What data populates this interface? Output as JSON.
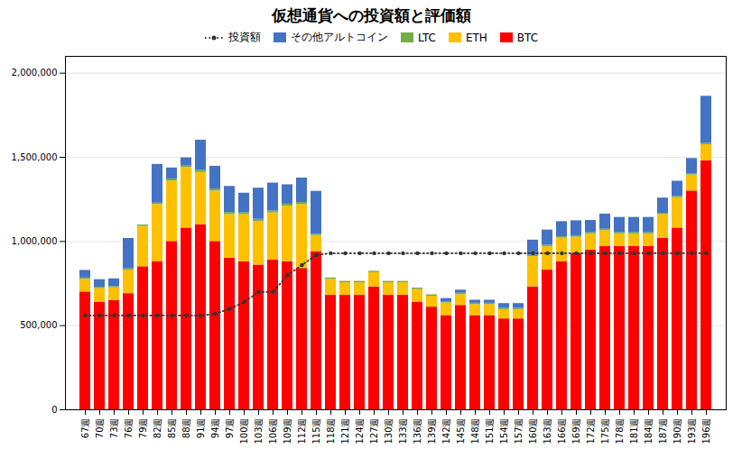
{
  "chart_data": {
    "type": "bar",
    "title": "仮想通貨への投資額と評価額",
    "stacked": true,
    "grid": true,
    "legend": "top",
    "categories": [
      "67週",
      "70週",
      "73週",
      "76週",
      "79週",
      "82週",
      "85週",
      "88週",
      "91週",
      "94週",
      "97週",
      "100週",
      "103週",
      "106週",
      "109週",
      "112週",
      "115週",
      "118週",
      "121週",
      "124週",
      "127週",
      "130週",
      "133週",
      "136週",
      "139週",
      "142週",
      "145週",
      "148週",
      "151週",
      "154週",
      "157週",
      "160週",
      "163週",
      "166週",
      "169週",
      "172週",
      "175週",
      "178週",
      "181週",
      "184週",
      "187週",
      "190週",
      "193週",
      "196週"
    ],
    "ylim": [
      0,
      2100000
    ],
    "yticks": [
      0,
      {
        "value": 500000,
        "label": "500,000"
      },
      {
        "value": 1000000,
        "label": "1,000,000"
      },
      {
        "value": 1500000,
        "label": "1,500,000"
      },
      {
        "value": 2000000,
        "label": "2,000,000"
      }
    ],
    "series": [
      {
        "name": "BTC",
        "type": "bar",
        "color": "#FF0000",
        "values": [
          700000,
          640000,
          650000,
          690000,
          850000,
          880000,
          1000000,
          1080000,
          1100000,
          1000000,
          900000,
          880000,
          860000,
          890000,
          880000,
          840000,
          940000,
          680000,
          680000,
          680000,
          730000,
          680000,
          680000,
          640000,
          610000,
          560000,
          620000,
          560000,
          560000,
          540000,
          540000,
          730000,
          830000,
          880000,
          930000,
          950000,
          970000,
          970000,
          970000,
          970000,
          1020000,
          1080000,
          1300000,
          1480000
        ]
      },
      {
        "name": "ETH",
        "type": "bar",
        "color": "#FFC000",
        "values": [
          75000,
          80000,
          75000,
          140000,
          240000,
          340000,
          360000,
          360000,
          310000,
          300000,
          260000,
          280000,
          260000,
          280000,
          330000,
          380000,
          95000,
          95000,
          75000,
          75000,
          85000,
          75000,
          75000,
          75000,
          65000,
          75000,
          65000,
          65000,
          65000,
          55000,
          55000,
          180000,
          140000,
          140000,
          95000,
          95000,
          95000,
          75000,
          75000,
          75000,
          140000,
          180000,
          95000,
          95000
        ]
      },
      {
        "name": "LTC",
        "type": "bar",
        "color": "#70AD47",
        "values": [
          8000,
          8000,
          8000,
          8000,
          8000,
          8000,
          12000,
          12000,
          12000,
          12000,
          12000,
          12000,
          12000,
          12000,
          12000,
          12000,
          8000,
          8000,
          8000,
          8000,
          8000,
          8000,
          8000,
          8000,
          8000,
          8000,
          8000,
          8000,
          8000,
          8000,
          8000,
          8000,
          8000,
          8000,
          8000,
          8000,
          8000,
          8000,
          8000,
          8000,
          8000,
          8000,
          8000,
          8000
        ]
      },
      {
        "name": "その他アルトコイン",
        "type": "bar",
        "color": "#4472C4",
        "values": [
          45000,
          45000,
          45000,
          180000,
          0,
          230000,
          65000,
          45000,
          180000,
          135000,
          155000,
          115000,
          185000,
          165000,
          115000,
          145000,
          255000,
          0,
          0,
          0,
          0,
          0,
          0,
          0,
          0,
          18000,
          18000,
          18000,
          18000,
          28000,
          28000,
          90000,
          90000,
          90000,
          90000,
          72000,
          90000,
          90000,
          90000,
          90000,
          90000,
          90000,
          90000,
          280000
        ]
      },
      {
        "name": "投資額",
        "type": "line",
        "color": "#333333",
        "line_style": "dotted",
        "marker": "circle",
        "values": [
          560000,
          560000,
          560000,
          560000,
          560000,
          560000,
          560000,
          560000,
          560000,
          570000,
          600000,
          640000,
          700000,
          700000,
          800000,
          860000,
          920000,
          930000,
          930000,
          930000,
          930000,
          930000,
          930000,
          930000,
          930000,
          930000,
          930000,
          930000,
          930000,
          930000,
          930000,
          930000,
          930000,
          930000,
          930000,
          930000,
          930000,
          930000,
          930000,
          930000,
          930000,
          930000,
          930000,
          930000
        ]
      }
    ]
  }
}
